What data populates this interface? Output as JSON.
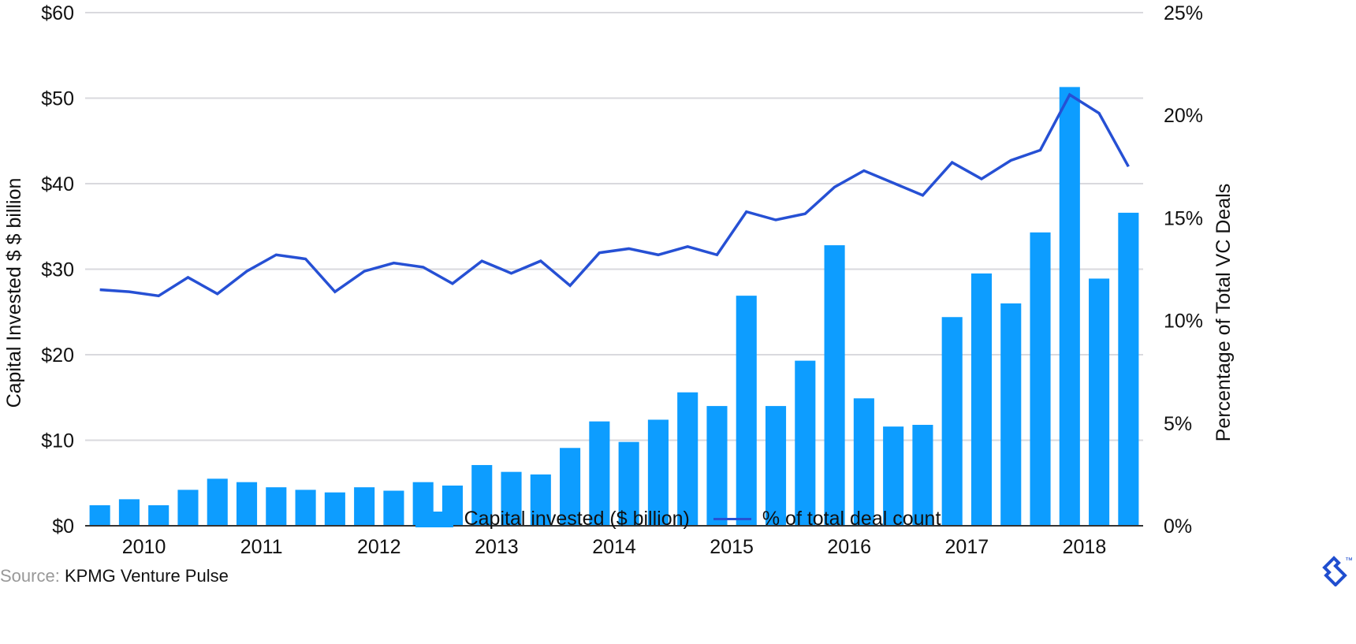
{
  "chart_data": {
    "type": "bar+line",
    "categories": [
      "Q1 2010",
      "Q2 2010",
      "Q3 2010",
      "Q4 2010",
      "Q1 2011",
      "Q2 2011",
      "Q3 2011",
      "Q4 2011",
      "Q1 2012",
      "Q2 2012",
      "Q3 2012",
      "Q4 2012",
      "Q1 2013",
      "Q2 2013",
      "Q3 2013",
      "Q4 2013",
      "Q1 2014",
      "Q2 2014",
      "Q3 2014",
      "Q4 2014",
      "Q1 2015",
      "Q2 2015",
      "Q3 2015",
      "Q4 2015",
      "Q1 2016",
      "Q2 2016",
      "Q3 2016",
      "Q4 2016",
      "Q1 2017",
      "Q2 2017",
      "Q3 2017",
      "Q4 2017",
      "Q1 2018",
      "Q2 2018",
      "Q3 2018",
      "Q4 2018"
    ],
    "x_tick_labels": [
      "2010",
      "2011",
      "2012",
      "2013",
      "2014",
      "2015",
      "2016",
      "2017",
      "2018"
    ],
    "series": [
      {
        "name": "Capital invested ($ billion)",
        "type": "bar",
        "axis": "left",
        "color": "#0d9dff",
        "values": [
          2.4,
          3.1,
          2.4,
          4.2,
          5.5,
          5.1,
          4.5,
          4.2,
          3.9,
          4.5,
          4.1,
          5.1,
          4.7,
          7.1,
          6.3,
          6.0,
          9.1,
          12.2,
          9.8,
          12.4,
          15.6,
          14.0,
          26.9,
          14.0,
          19.3,
          32.8,
          14.9,
          11.6,
          11.8,
          24.4,
          29.5,
          26.0,
          34.3,
          51.3,
          28.9,
          36.6
        ]
      },
      {
        "name": "% of total deal count",
        "type": "line",
        "axis": "right",
        "color": "#2650d4",
        "values": [
          11.5,
          11.4,
          11.2,
          12.1,
          11.3,
          12.4,
          13.2,
          13.0,
          11.4,
          12.4,
          12.8,
          12.6,
          11.8,
          12.9,
          12.3,
          12.9,
          11.7,
          13.3,
          13.5,
          13.2,
          13.6,
          13.2,
          15.3,
          14.9,
          15.2,
          16.5,
          17.3,
          16.7,
          16.1,
          17.7,
          16.9,
          17.8,
          18.3,
          21.0,
          20.1,
          17.5
        ]
      }
    ],
    "ylabel_left": "Capital Invested $ $ billion",
    "ylabel_right": "Percentage of Total VC Deals",
    "ylim_left": [
      0,
      60
    ],
    "ylim_right": [
      0,
      25
    ],
    "yticks_left": [
      "$0",
      "$10",
      "$20",
      "$30",
      "$40",
      "$50",
      "$60"
    ],
    "yticks_right": [
      "0%",
      "5%",
      "10%",
      "15%",
      "20%",
      "25%"
    ],
    "grid": true,
    "legend_placement": "bottom"
  },
  "source": {
    "label": "Source:",
    "text": "KPMG Venture Pulse"
  },
  "logo": {
    "mark": "™"
  }
}
